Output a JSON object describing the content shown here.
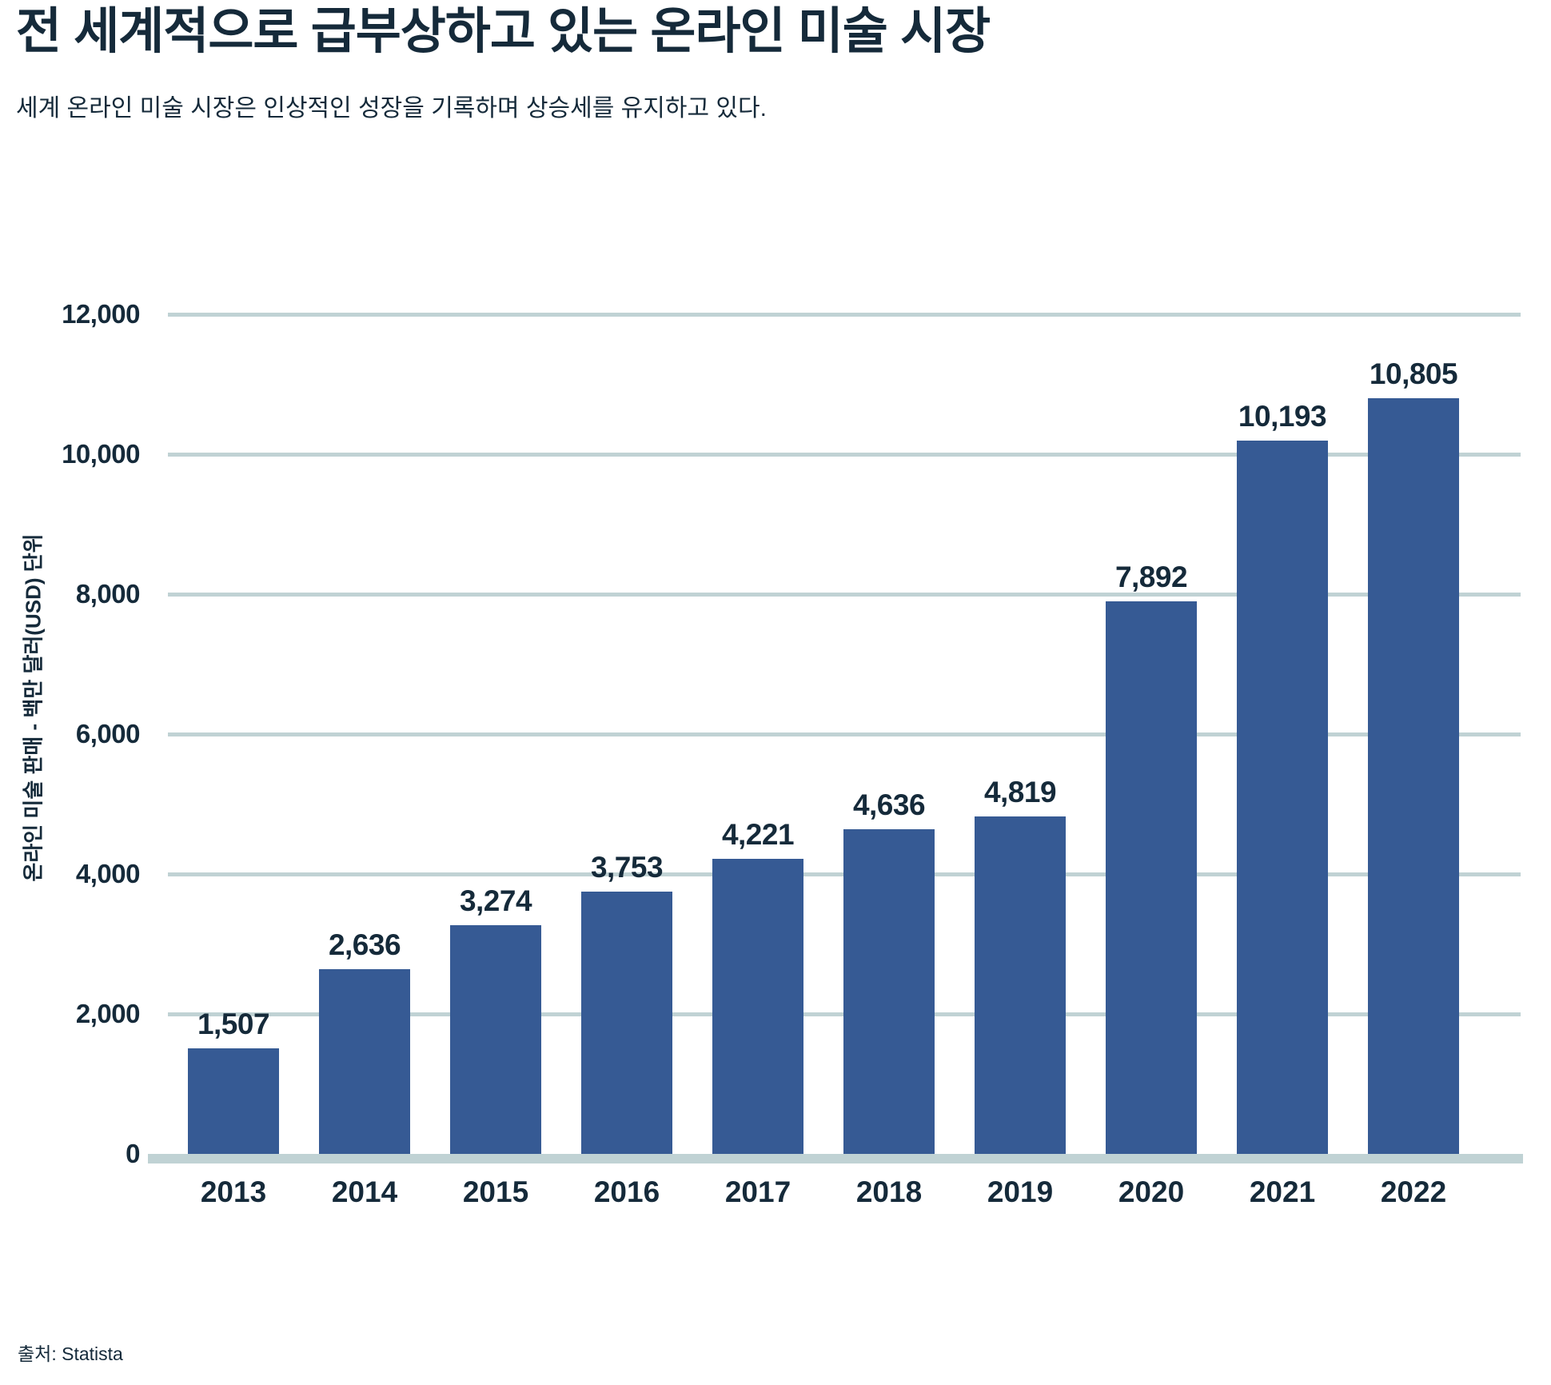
{
  "header": {
    "title": "전 세계적으로 급부상하고 있는 온라인 미술 시장",
    "subtitle": "세계 온라인 미술 시장은 인상적인 성장을 기록하며 상승세를 유지하고 있다."
  },
  "footer": {
    "source": "출처: Statista"
  },
  "colors": {
    "bar": "#365A94",
    "text": "#152A3A",
    "gridline": "#C0D2D4"
  },
  "chart_data": {
    "type": "bar",
    "title": "전 세계적으로 급부상하고 있는 온라인 미술 시장",
    "subtitle": "세계 온라인 미술 시장은 인상적인 성장을 기록하며 상승세를 유지하고 있다.",
    "categories": [
      "2013",
      "2014",
      "2015",
      "2016",
      "2017",
      "2018",
      "2019",
      "2020",
      "2021",
      "2022"
    ],
    "values": [
      1507,
      2636,
      3274,
      3753,
      4221,
      4636,
      4819,
      7892,
      10193,
      10805
    ],
    "value_labels": [
      "1,507",
      "2,636",
      "3,274",
      "3,753",
      "4,221",
      "4,636",
      "4,819",
      "7,892",
      "10,193",
      "10,805"
    ],
    "xlabel": "",
    "ylabel": "온라인 미술 판매 - 백만 달러(USD) 단위",
    "ylim": [
      0,
      12000
    ],
    "yticks": [
      0,
      2000,
      4000,
      6000,
      8000,
      10000,
      12000
    ],
    "ytick_labels": [
      "0",
      "2,000",
      "4,000",
      "6,000",
      "8,000",
      "10,000",
      "12,000"
    ],
    "grid": true,
    "legend_position": "none",
    "source": "출처: Statista"
  }
}
